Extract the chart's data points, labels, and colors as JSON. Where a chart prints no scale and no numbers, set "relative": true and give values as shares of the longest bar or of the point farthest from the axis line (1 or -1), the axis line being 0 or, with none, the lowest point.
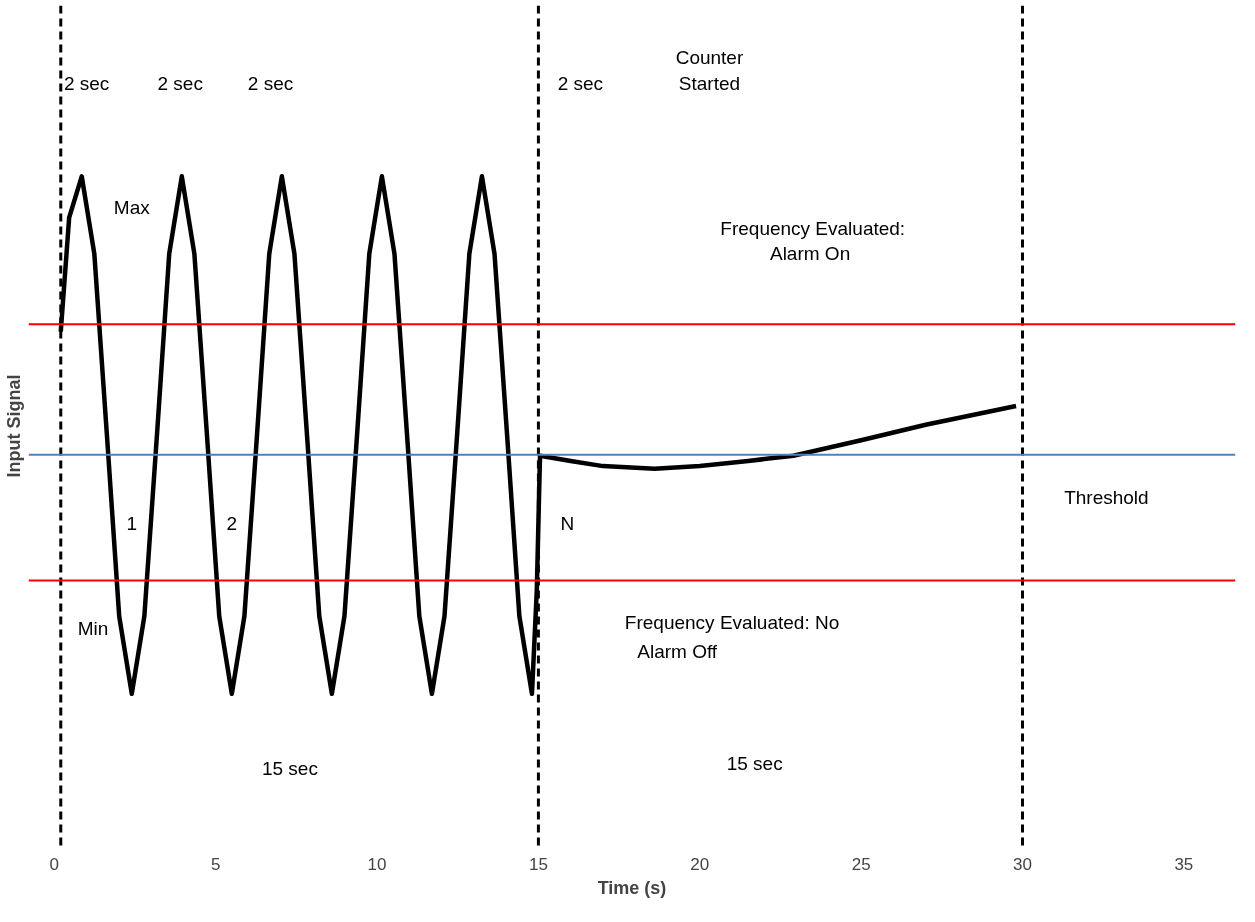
{
  "chart_data": {
    "type": "line",
    "relative": true,
    "xlabel": "Time (s)",
    "ylabel": "Input Signal",
    "xlim": [
      -0.8,
      36.6
    ],
    "xticks": [
      0,
      5,
      10,
      15,
      20,
      25,
      30,
      35
    ],
    "tick_labels": "x",
    "grid": false,
    "marker": "none",
    "line_style": "solid",
    "series": [
      {
        "color": "#000000",
        "x": [
          0.2,
          0.46,
          0.85,
          1.24,
          1.63,
          2.01,
          2.4,
          2.79,
          3.18,
          3.56,
          3.95,
          4.34,
          4.73,
          5.11,
          5.5,
          5.89,
          6.28,
          6.66,
          7.05,
          7.44,
          7.83,
          8.21,
          8.6,
          8.99,
          9.38,
          9.76,
          10.15,
          10.54,
          10.93,
          11.31,
          11.7,
          12.09,
          12.48,
          12.86,
          13.25,
          13.64,
          14.03,
          14.41,
          14.8,
          14.95,
          15.05,
          16,
          17,
          18.6,
          20,
          21.5,
          22.9,
          25,
          27,
          29.8
        ],
        "values": [
          0.7,
          0.92,
          1,
          0.85,
          0.5,
          0.15,
          0,
          0.15,
          0.5,
          0.85,
          1,
          0.85,
          0.5,
          0.15,
          0,
          0.15,
          0.5,
          0.85,
          1,
          0.85,
          0.5,
          0.15,
          0,
          0.15,
          0.5,
          0.85,
          1,
          0.85,
          0.5,
          0.15,
          0,
          0.15,
          0.5,
          0.85,
          1,
          0.85,
          0.5,
          0.15,
          0,
          0.2,
          0.46,
          0.45,
          0.44,
          0.435,
          0.44,
          0.45,
          0.46,
          0.49,
          0.52,
          0.556
        ]
      }
    ],
    "ref_lines": [
      {
        "axis": "x",
        "value": 0.2,
        "color": "#000000",
        "line_style": "dashed"
      },
      {
        "axis": "x",
        "value": 15,
        "color": "#000000",
        "line_style": "dashed"
      },
      {
        "axis": "x",
        "value": 30,
        "color": "#000000",
        "line_style": "dashed"
      },
      {
        "axis": "y",
        "value": 0.714,
        "color": "#ff0000",
        "line_style": "solid"
      },
      {
        "axis": "y",
        "value": 0.219,
        "color": "#ff0000",
        "line_style": "solid"
      },
      {
        "axis": "y",
        "value": 0.462,
        "color": "#4f81bd",
        "line_style": "solid"
      }
    ],
    "annotations": [
      "2 sec",
      "2 sec",
      "2 sec",
      "2 sec",
      "Counter",
      "Started",
      "Max",
      "Frequency Evaluated:",
      "Alarm  On",
      "1",
      "2",
      "N",
      "Min",
      "Frequency Evaluated: No",
      "Alarm Off",
      "Threshold",
      "15 sec",
      "15 sec"
    ]
  }
}
